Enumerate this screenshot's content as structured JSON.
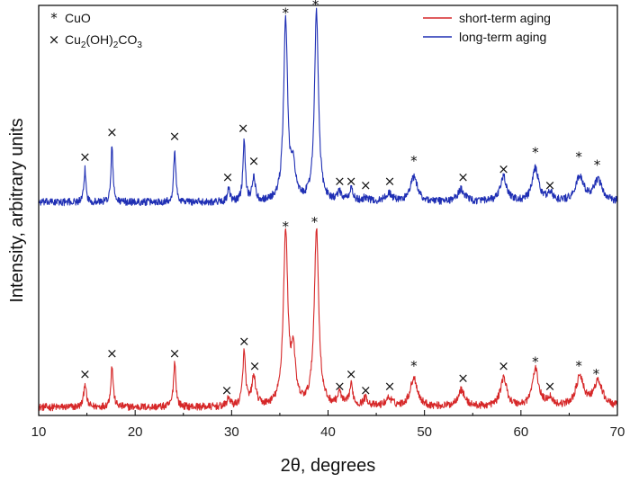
{
  "chart_data": {
    "type": "line",
    "title": "",
    "xlabel": "2θ, degrees",
    "ylabel": "Intensity, arbitrary units",
    "xlim": [
      10,
      70
    ],
    "ylim": [
      0,
      1
    ],
    "xticks": [
      10,
      20,
      30,
      40,
      50,
      60,
      70
    ],
    "xtick_labels": [
      "10",
      "20",
      "30",
      "40",
      "50",
      "60",
      "70"
    ],
    "grid": false,
    "legend": {
      "position": "top-right",
      "entries": [
        {
          "name": "short-term aging",
          "color": "#d62728"
        },
        {
          "name": "long-term aging",
          "color": "#1f2fb4"
        }
      ]
    },
    "phase_legend": {
      "position": "top-left",
      "entries": [
        {
          "symbol": "*",
          "label_parts": [
            "CuO"
          ]
        },
        {
          "symbol": "×",
          "label_parts": [
            "Cu",
            "2",
            "(OH)",
            "2",
            "CO",
            "3"
          ]
        }
      ]
    },
    "series": [
      {
        "name": "short-term aging",
        "color": "#d62728",
        "baseline": 0.02,
        "peaks": [
          {
            "x": 14.8,
            "h": 0.06,
            "w": 0.15
          },
          {
            "x": 17.6,
            "h": 0.1,
            "w": 0.15
          },
          {
            "x": 24.1,
            "h": 0.11,
            "w": 0.15
          },
          {
            "x": 29.7,
            "h": 0.02,
            "w": 0.2
          },
          {
            "x": 31.3,
            "h": 0.13,
            "w": 0.18
          },
          {
            "x": 32.3,
            "h": 0.07,
            "w": 0.25
          },
          {
            "x": 35.6,
            "h": 0.42,
            "w": 0.28
          },
          {
            "x": 36.4,
            "h": 0.12,
            "w": 0.25
          },
          {
            "x": 38.8,
            "h": 0.43,
            "w": 0.28
          },
          {
            "x": 41.2,
            "h": 0.03,
            "w": 0.25
          },
          {
            "x": 42.4,
            "h": 0.05,
            "w": 0.22
          },
          {
            "x": 43.9,
            "h": 0.02,
            "w": 0.3
          },
          {
            "x": 46.3,
            "h": 0.02,
            "w": 0.4
          },
          {
            "x": 48.9,
            "h": 0.07,
            "w": 0.45
          },
          {
            "x": 53.8,
            "h": 0.04,
            "w": 0.45
          },
          {
            "x": 58.2,
            "h": 0.07,
            "w": 0.4
          },
          {
            "x": 61.5,
            "h": 0.09,
            "w": 0.4
          },
          {
            "x": 63.0,
            "h": 0.02,
            "w": 0.35
          },
          {
            "x": 66.1,
            "h": 0.07,
            "w": 0.5
          },
          {
            "x": 68.0,
            "h": 0.06,
            "w": 0.55
          }
        ]
      },
      {
        "name": "long-term aging",
        "color": "#1f2fb4",
        "baseline": 0.52,
        "peaks": [
          {
            "x": 14.8,
            "h": 0.08,
            "w": 0.12
          },
          {
            "x": 17.6,
            "h": 0.14,
            "w": 0.12
          },
          {
            "x": 24.1,
            "h": 0.13,
            "w": 0.13
          },
          {
            "x": 29.7,
            "h": 0.03,
            "w": 0.15
          },
          {
            "x": 31.3,
            "h": 0.15,
            "w": 0.15
          },
          {
            "x": 32.3,
            "h": 0.06,
            "w": 0.18
          },
          {
            "x": 35.6,
            "h": 0.44,
            "w": 0.25
          },
          {
            "x": 36.4,
            "h": 0.08,
            "w": 0.25
          },
          {
            "x": 38.8,
            "h": 0.46,
            "w": 0.25
          },
          {
            "x": 41.2,
            "h": 0.02,
            "w": 0.25
          },
          {
            "x": 42.4,
            "h": 0.03,
            "w": 0.22
          },
          {
            "x": 43.9,
            "h": 0.01,
            "w": 0.3
          },
          {
            "x": 46.3,
            "h": 0.02,
            "w": 0.4
          },
          {
            "x": 48.9,
            "h": 0.06,
            "w": 0.45
          },
          {
            "x": 53.8,
            "h": 0.03,
            "w": 0.45
          },
          {
            "x": 58.2,
            "h": 0.06,
            "w": 0.4
          },
          {
            "x": 61.5,
            "h": 0.08,
            "w": 0.4
          },
          {
            "x": 63.0,
            "h": 0.02,
            "w": 0.35
          },
          {
            "x": 66.1,
            "h": 0.06,
            "w": 0.5
          },
          {
            "x": 68.0,
            "h": 0.05,
            "w": 0.55
          }
        ]
      }
    ],
    "annotations": [
      {
        "series": "short-term aging",
        "symbol": "×",
        "x": 14.8,
        "y": 0.09
      },
      {
        "series": "short-term aging",
        "symbol": "×",
        "x": 17.6,
        "y": 0.14
      },
      {
        "series": "short-term aging",
        "symbol": "×",
        "x": 24.1,
        "y": 0.14
      },
      {
        "series": "short-term aging",
        "symbol": "×",
        "x": 29.5,
        "y": 0.05
      },
      {
        "series": "short-term aging",
        "symbol": "×",
        "x": 31.3,
        "y": 0.17
      },
      {
        "series": "short-term aging",
        "symbol": "×",
        "x": 32.4,
        "y": 0.11
      },
      {
        "series": "short-term aging",
        "symbol": "*",
        "x": 35.6,
        "y": 0.45
      },
      {
        "series": "short-term aging",
        "symbol": "*",
        "x": 38.6,
        "y": 0.46
      },
      {
        "series": "short-term aging",
        "symbol": "×",
        "x": 41.2,
        "y": 0.06
      },
      {
        "series": "short-term aging",
        "symbol": "×",
        "x": 42.4,
        "y": 0.09
      },
      {
        "series": "short-term aging",
        "symbol": "×",
        "x": 43.9,
        "y": 0.05
      },
      {
        "series": "short-term aging",
        "symbol": "×",
        "x": 46.4,
        "y": 0.06
      },
      {
        "series": "short-term aging",
        "symbol": "*",
        "x": 48.9,
        "y": 0.11
      },
      {
        "series": "short-term aging",
        "symbol": "×",
        "x": 54.0,
        "y": 0.08
      },
      {
        "series": "short-term aging",
        "symbol": "×",
        "x": 58.2,
        "y": 0.11
      },
      {
        "series": "short-term aging",
        "symbol": "*",
        "x": 61.5,
        "y": 0.12
      },
      {
        "series": "short-term aging",
        "symbol": "×",
        "x": 63.0,
        "y": 0.06
      },
      {
        "series": "short-term aging",
        "symbol": "*",
        "x": 66.0,
        "y": 0.11
      },
      {
        "series": "short-term aging",
        "symbol": "*",
        "x": 67.8,
        "y": 0.09
      },
      {
        "series": "long-term aging",
        "symbol": "×",
        "x": 14.8,
        "y": 0.62
      },
      {
        "series": "long-term aging",
        "symbol": "×",
        "x": 17.6,
        "y": 0.68
      },
      {
        "series": "long-term aging",
        "symbol": "×",
        "x": 24.1,
        "y": 0.67
      },
      {
        "series": "long-term aging",
        "symbol": "×",
        "x": 29.6,
        "y": 0.57
      },
      {
        "series": "long-term aging",
        "symbol": "×",
        "x": 31.2,
        "y": 0.69
      },
      {
        "series": "long-term aging",
        "symbol": "×",
        "x": 32.3,
        "y": 0.61
      },
      {
        "series": "long-term aging",
        "symbol": "*",
        "x": 35.6,
        "y": 0.97
      },
      {
        "series": "long-term aging",
        "symbol": "*",
        "x": 38.7,
        "y": 0.99
      },
      {
        "series": "long-term aging",
        "symbol": "×",
        "x": 41.2,
        "y": 0.56
      },
      {
        "series": "long-term aging",
        "symbol": "×",
        "x": 42.4,
        "y": 0.56
      },
      {
        "series": "long-term aging",
        "symbol": "×",
        "x": 43.9,
        "y": 0.55
      },
      {
        "series": "long-term aging",
        "symbol": "×",
        "x": 46.4,
        "y": 0.56
      },
      {
        "series": "long-term aging",
        "symbol": "*",
        "x": 48.9,
        "y": 0.61
      },
      {
        "series": "long-term aging",
        "symbol": "×",
        "x": 54.0,
        "y": 0.57
      },
      {
        "series": "long-term aging",
        "symbol": "×",
        "x": 58.2,
        "y": 0.59
      },
      {
        "series": "long-term aging",
        "symbol": "*",
        "x": 61.5,
        "y": 0.63
      },
      {
        "series": "long-term aging",
        "symbol": "×",
        "x": 63.0,
        "y": 0.55
      },
      {
        "series": "long-term aging",
        "symbol": "*",
        "x": 66.0,
        "y": 0.62
      },
      {
        "series": "long-term aging",
        "symbol": "*",
        "x": 67.9,
        "y": 0.6
      }
    ]
  }
}
